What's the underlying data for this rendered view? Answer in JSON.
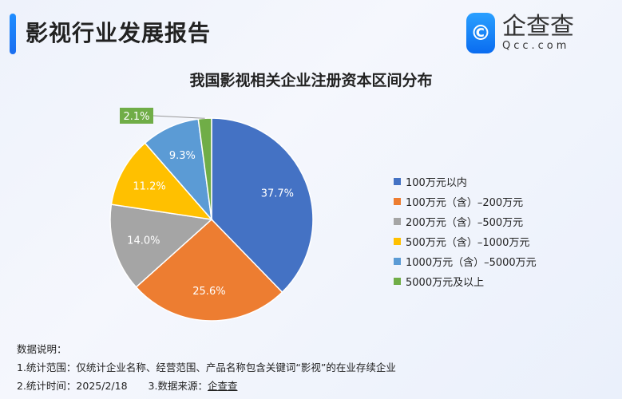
{
  "header": {
    "title": "影视行业发展报告",
    "logo_cn": "企查查",
    "logo_en": "Qcc.com",
    "logo_icon": "q-logo-icon"
  },
  "chart_data": {
    "type": "pie",
    "title": "我国影视相关企业注册资本区间分布",
    "categories": [
      "100万元以内",
      "100万元（含）–200万元",
      "200万元（含）–500万元",
      "500万元（含）–1000万元",
      "1000万元（含）–5000万元",
      "5000万元及以上"
    ],
    "values": [
      37.7,
      25.6,
      14.0,
      11.2,
      9.3,
      2.1
    ],
    "labels": [
      "37.7%",
      "25.6%",
      "14.0%",
      "11.2%",
      "9.3%",
      "2.1%"
    ],
    "colors": [
      "#4472C4",
      "#ED7D31",
      "#A5A5A5",
      "#FFC000",
      "#5B9BD5",
      "#70AD47"
    ],
    "legend_position": "right"
  },
  "notes": {
    "heading": "数据说明：",
    "line1": "1.统计范围：仅统计企业名称、经营范围、产品名称包含关键词“影视”的在业存续企业",
    "line2_prefix": "2.统计时间：2025/2/18",
    "line2_source_label": "3.数据来源：",
    "line2_source": "企查查"
  }
}
